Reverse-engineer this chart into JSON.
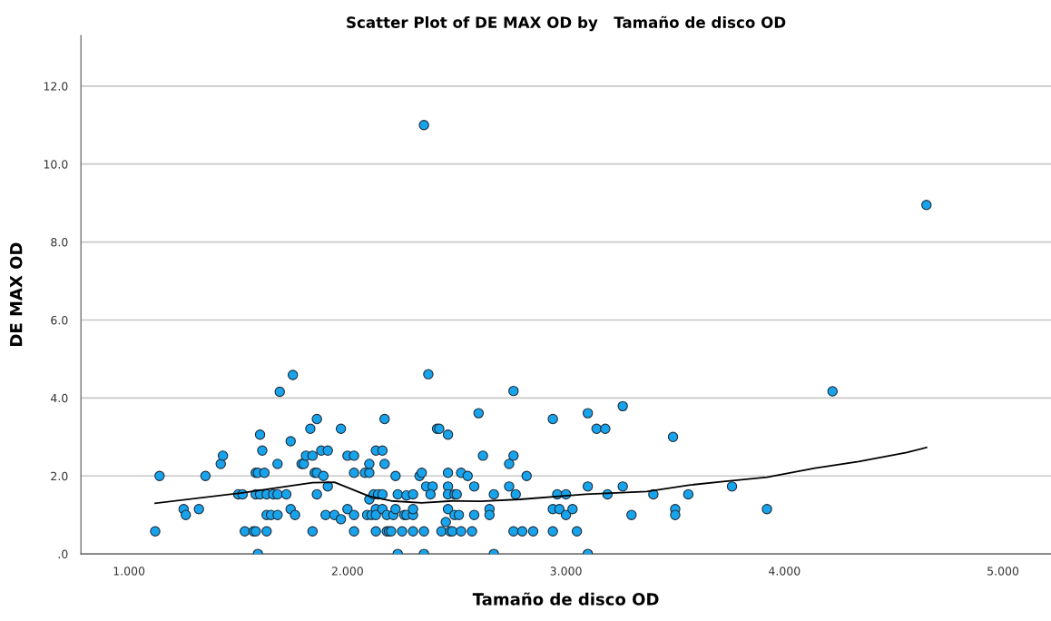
{
  "chart_data": {
    "type": "scatter",
    "title": "Scatter Plot of DE MAX OD by   Tamaño de disco OD",
    "xlabel": "Tamaño de disco OD",
    "ylabel": "DE MAX OD",
    "xlim": [
      0.78,
      5.22
    ],
    "ylim": [
      0,
      13.3
    ],
    "xticks": [
      {
        "value": 1,
        "label": "1.000"
      },
      {
        "value": 2,
        "label": "2.000"
      },
      {
        "value": 3,
        "label": "3.000"
      },
      {
        "value": 4,
        "label": "4.000"
      },
      {
        "value": 5,
        "label": "5.000"
      }
    ],
    "yticks": [
      {
        "value": 0,
        "label": ".0"
      },
      {
        "value": 2,
        "label": "2.0"
      },
      {
        "value": 4,
        "label": "4.0"
      },
      {
        "value": 6,
        "label": "6.0"
      },
      {
        "value": 8,
        "label": "8.0"
      },
      {
        "value": 10,
        "label": "10.0"
      },
      {
        "value": 12,
        "label": "12.0"
      }
    ],
    "grid": "y",
    "marker": "circle",
    "series": [
      {
        "color": "#18a4ec",
        "x": [
          1.12,
          1.14,
          1.25,
          1.26,
          1.32,
          1.35,
          1.42,
          1.43,
          1.5,
          1.52,
          1.53,
          1.57,
          1.58,
          1.58,
          1.59,
          1.62,
          1.59,
          1.6,
          1.61,
          1.58,
          1.6,
          1.63,
          1.63,
          1.63,
          1.65,
          1.66,
          1.68,
          1.68,
          1.68,
          1.69,
          1.72,
          1.74,
          1.74,
          1.75,
          1.76,
          1.79,
          1.8,
          1.81,
          1.83,
          1.84,
          1.84,
          1.85,
          1.86,
          1.86,
          1.86,
          1.88,
          1.89,
          1.9,
          1.91,
          1.91,
          1.94,
          1.97,
          1.97,
          2.0,
          2.0,
          2.03,
          2.03,
          2.03,
          2.03,
          2.08,
          2.1,
          2.1,
          2.1,
          2.09,
          2.11,
          2.12,
          2.13,
          2.13,
          2.13,
          2.13,
          2.14,
          2.16,
          2.16,
          2.16,
          2.17,
          2.17,
          2.18,
          2.18,
          2.19,
          2.2,
          2.21,
          2.22,
          2.22,
          2.23,
          2.23,
          2.25,
          2.26,
          2.27,
          2.27,
          2.3,
          2.3,
          2.3,
          2.3,
          2.33,
          2.34,
          2.35,
          2.35,
          2.36,
          2.37,
          2.39,
          2.38,
          2.41,
          2.42,
          2.43,
          2.45,
          2.46,
          2.46,
          2.46,
          2.46,
          2.46,
          2.47,
          2.49,
          2.5,
          2.48,
          2.52,
          2.49,
          2.51,
          2.52,
          2.55,
          2.58,
          2.58,
          2.57,
          2.6,
          2.62,
          2.65,
          2.65,
          2.67,
          2.67,
          2.74,
          2.74,
          2.76,
          2.76,
          2.77,
          2.76,
          2.8,
          2.82,
          2.85,
          2.94,
          2.94,
          2.94,
          2.96,
          2.97,
          3.0,
          3.0,
          3.03,
          3.05,
          3.1,
          3.1,
          3.1,
          3.14,
          3.18,
          3.19,
          3.26,
          3.26,
          3.3,
          3.4,
          3.49,
          3.5,
          3.5,
          3.56,
          3.76,
          3.92,
          4.22,
          4.65,
          2.35
        ],
        "values": [
          0.58,
          2.0,
          1.15,
          1.0,
          1.15,
          2.0,
          2.31,
          2.52,
          1.53,
          1.53,
          0.58,
          0.58,
          0.58,
          2.08,
          2.08,
          2.08,
          0,
          3.06,
          2.65,
          1.53,
          1.53,
          1.53,
          1.0,
          0.58,
          1.0,
          1.53,
          1.0,
          2.31,
          1.53,
          4.16,
          1.53,
          2.89,
          1.15,
          4.59,
          1.0,
          2.31,
          2.31,
          2.52,
          3.21,
          2.52,
          0.58,
          2.08,
          2.08,
          1.53,
          3.46,
          2.65,
          2.0,
          1.0,
          1.73,
          2.65,
          1.0,
          0.89,
          3.21,
          2.52,
          1.15,
          2.52,
          2.08,
          1.0,
          0.58,
          2.08,
          2.08,
          2.31,
          1.4,
          1.0,
          1.0,
          1.53,
          2.65,
          1.15,
          0.58,
          1.0,
          1.53,
          1.53,
          2.65,
          1.15,
          3.46,
          2.31,
          1.0,
          0.58,
          0.58,
          0.58,
          1.0,
          1.15,
          2.0,
          1.53,
          0,
          0.58,
          1.0,
          1.0,
          1.5,
          1.53,
          1.0,
          1.15,
          0.58,
          2.0,
          2.08,
          0,
          0.58,
          1.73,
          4.61,
          1.73,
          1.53,
          3.21,
          3.21,
          0.58,
          0.82,
          1.15,
          2.08,
          1.73,
          3.06,
          1.53,
          0.58,
          1.53,
          1.53,
          0.58,
          0.58,
          1.0,
          1.0,
          2.08,
          2.0,
          1.73,
          1.0,
          0.58,
          3.61,
          2.52,
          1.15,
          1.0,
          0,
          1.53,
          1.73,
          2.31,
          2.52,
          4.18,
          1.53,
          0.58,
          0.58,
          2.0,
          0.58,
          3.46,
          0.58,
          1.15,
          1.53,
          1.15,
          1.0,
          1.53,
          1.15,
          0.58,
          3.61,
          1.73,
          0,
          3.21,
          3.21,
          1.53,
          3.79,
          1.73,
          1.0,
          1.53,
          3.0,
          1.15,
          1.0,
          1.53,
          1.73,
          1.15,
          4.17,
          8.95,
          11.0
        ]
      },
      {
        "type": "line",
        "color": "#000000",
        "marker": "none",
        "x": [
          1.12,
          1.51,
          1.84,
          1.94,
          2.1,
          2.2,
          2.34,
          2.48,
          2.61,
          2.79,
          3.09,
          3.37,
          3.57,
          3.71,
          3.92,
          4.14,
          4.34,
          4.56,
          4.65
        ],
        "values": [
          1.3,
          1.56,
          1.83,
          1.84,
          1.48,
          1.36,
          1.31,
          1.36,
          1.35,
          1.4,
          1.53,
          1.6,
          1.77,
          1.85,
          1.97,
          2.2,
          2.37,
          2.6,
          2.73
        ]
      }
    ]
  }
}
